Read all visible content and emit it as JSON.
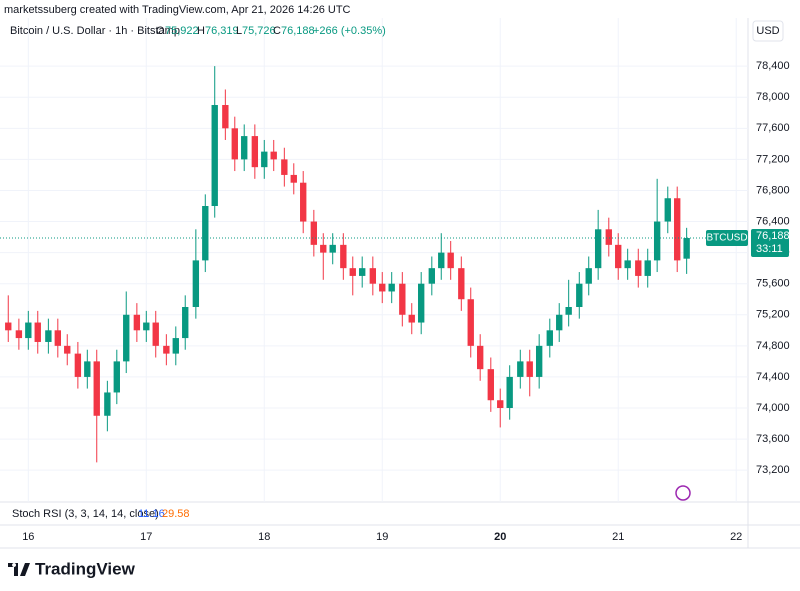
{
  "header": "marketssuberg created with TradingView.com, Apr 21, 2026 14:26 UTC",
  "legend": {
    "symbol": "Bitcoin / U.S. Dollar · 1h · Bitstamp",
    "o": "O",
    "o_value": "75,922",
    "h": "H",
    "h_value": "76,319",
    "l": "L",
    "l_value": "75,726",
    "c": "C",
    "c_value": "76,188",
    "change": "+266 (+0.35%)"
  },
  "currency": "USD",
  "price_tag": {
    "symbol": "BTCUSD",
    "price": "76,188",
    "countdown": "33:11"
  },
  "indicator": {
    "name": "Stoch RSI (3, 3, 14, 14, close)",
    "k": "11.16",
    "d": "29.58"
  },
  "brand": "TradingView",
  "chart_data": {
    "type": "candlestick",
    "up_color": "#089981",
    "down_color": "#f23645",
    "grid": true,
    "last_price": 76188,
    "xlim": [
      15.76,
      22.1
    ],
    "xticks": [
      16,
      17,
      18,
      19,
      20,
      21,
      22
    ],
    "ylim": [
      72790,
      79020
    ],
    "yticks": [
      {
        "value": 73200,
        "label": "73,200"
      },
      {
        "value": 73600,
        "label": "73,600"
      },
      {
        "value": 74000,
        "label": "74,000"
      },
      {
        "value": 74400,
        "label": "74,400"
      },
      {
        "value": 74800,
        "label": "74,800"
      },
      {
        "value": 75200,
        "label": "75,200"
      },
      {
        "value": 75600,
        "label": "75,600"
      },
      {
        "value": 76000,
        "label": "76,000"
      },
      {
        "value": 76400,
        "label": "76,400"
      },
      {
        "value": 76800,
        "label": "76,800"
      },
      {
        "value": 77200,
        "label": "77,200"
      },
      {
        "value": 77600,
        "label": "77,600"
      },
      {
        "value": 78000,
        "label": "78,000"
      },
      {
        "value": 78400,
        "label": "78,400"
      }
    ],
    "x": [
      15.83,
      15.92,
      16.0,
      16.08,
      16.17,
      16.25,
      16.33,
      16.42,
      16.5,
      16.58,
      16.67,
      16.75,
      16.83,
      16.92,
      17.0,
      17.08,
      17.17,
      17.25,
      17.33,
      17.42,
      17.5,
      17.58,
      17.67,
      17.75,
      17.83,
      17.92,
      18.0,
      18.08,
      18.17,
      18.25,
      18.33,
      18.42,
      18.5,
      18.58,
      18.67,
      18.75,
      18.83,
      18.92,
      19.0,
      19.08,
      19.17,
      19.25,
      19.33,
      19.42,
      19.5,
      19.58,
      19.67,
      19.75,
      19.83,
      19.92,
      20.0,
      20.08,
      20.17,
      20.25,
      20.33,
      20.42,
      20.5,
      20.58,
      20.67,
      20.75,
      20.83,
      20.92,
      21.0,
      21.08,
      21.17,
      21.25,
      21.33,
      21.42,
      21.5,
      21.58
    ],
    "open": [
      75100,
      75000,
      74900,
      75100,
      74850,
      75000,
      74800,
      74700,
      74400,
      74600,
      73900,
      74200,
      74600,
      75200,
      75000,
      75100,
      74800,
      74700,
      74900,
      75300,
      75900,
      76600,
      77900,
      77600,
      77200,
      77500,
      77100,
      77300,
      77200,
      77000,
      76900,
      76400,
      76100,
      76000,
      76100,
      75800,
      75700,
      75800,
      75600,
      75500,
      75600,
      75200,
      75100,
      75600,
      75800,
      76000,
      75800,
      75400,
      74800,
      74500,
      74100,
      74000,
      74400,
      74600,
      74400,
      74800,
      75000,
      75200,
      75300,
      75600,
      75800,
      76300,
      76100,
      75800,
      75900,
      75700,
      75900,
      76400,
      76700,
      75922
    ],
    "high": [
      75450,
      75150,
      75250,
      75250,
      75150,
      75150,
      74950,
      74850,
      74750,
      74750,
      74350,
      74750,
      75500,
      75350,
      75250,
      75250,
      74950,
      75050,
      75450,
      76300,
      76750,
      78400,
      78100,
      77750,
      77650,
      77650,
      77450,
      77450,
      77350,
      77150,
      77050,
      76550,
      76250,
      76250,
      76250,
      75950,
      75950,
      75950,
      75750,
      75750,
      75750,
      75350,
      75750,
      75950,
      76250,
      76150,
      75950,
      75550,
      74950,
      74650,
      74250,
      74550,
      74750,
      74750,
      74950,
      75150,
      75350,
      75650,
      75750,
      75950,
      76550,
      76450,
      76250,
      76050,
      76050,
      76050,
      76950,
      76850,
      76850,
      76319
    ],
    "low": [
      74850,
      74750,
      74750,
      74700,
      74700,
      74650,
      74550,
      74250,
      74250,
      73300,
      73700,
      74050,
      74450,
      74850,
      74850,
      74650,
      74550,
      74550,
      74750,
      75150,
      75750,
      76450,
      77450,
      77050,
      77050,
      76950,
      76950,
      77050,
      76850,
      76750,
      76250,
      75950,
      75650,
      75850,
      75650,
      75450,
      75550,
      75450,
      75350,
      75350,
      75050,
      74950,
      74950,
      75450,
      75650,
      75650,
      75250,
      74650,
      74350,
      73950,
      73750,
      73850,
      74250,
      74150,
      74250,
      74650,
      74850,
      75050,
      75150,
      75450,
      75650,
      75950,
      75650,
      75650,
      75550,
      75550,
      75750,
      76250,
      75750,
      75726
    ],
    "close": [
      75000,
      74900,
      75100,
      74850,
      75000,
      74800,
      74700,
      74400,
      74600,
      73900,
      74200,
      74600,
      75200,
      75000,
      75100,
      74800,
      74700,
      74900,
      75300,
      75900,
      76600,
      77900,
      77600,
      77200,
      77500,
      77100,
      77300,
      77200,
      77000,
      76900,
      76400,
      76100,
      76000,
      76100,
      75800,
      75700,
      75800,
      75600,
      75500,
      75600,
      75200,
      75100,
      75600,
      75800,
      76000,
      75800,
      75400,
      74800,
      74500,
      74100,
      74000,
      74400,
      74600,
      74400,
      74800,
      75000,
      75200,
      75300,
      75600,
      75800,
      76300,
      76100,
      75800,
      75900,
      75700,
      75900,
      76400,
      76700,
      75900,
      76188
    ]
  }
}
